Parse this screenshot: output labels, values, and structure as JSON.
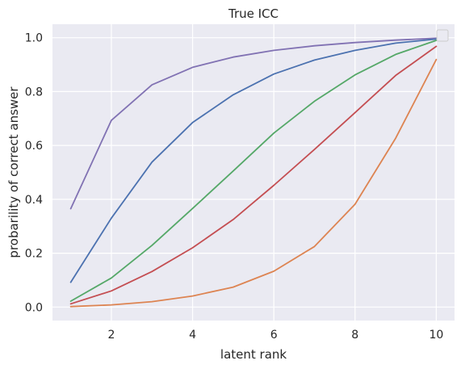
{
  "chart_data": {
    "type": "line",
    "title": "True ICC",
    "xlabel": "latent rank",
    "ylabel": "probarility of correct answer",
    "x": [
      1,
      2,
      3,
      4,
      5,
      6,
      7,
      8,
      9,
      10
    ],
    "xlim": [
      0.55,
      10.45
    ],
    "ylim": [
      -0.05,
      1.05
    ],
    "xticks": [
      2,
      4,
      6,
      8,
      10
    ],
    "yticks": [
      0.0,
      0.2,
      0.4,
      0.6,
      0.8,
      1.0
    ],
    "ytick_labels": [
      "0.0",
      "0.2",
      "0.4",
      "0.6",
      "0.8",
      "1.0"
    ],
    "grid": true,
    "background": "#eaeaf2",
    "legend": {
      "placement": "top-right",
      "entries": []
    },
    "series": [
      {
        "color": "#8172b3",
        "values": [
          0.365,
          0.693,
          0.825,
          0.89,
          0.928,
          0.953,
          0.97,
          0.982,
          0.991,
          0.998
        ]
      },
      {
        "color": "#4c72b0",
        "values": [
          0.092,
          0.33,
          0.538,
          0.685,
          0.788,
          0.865,
          0.917,
          0.953,
          0.98,
          0.995
        ]
      },
      {
        "color": "#55a868",
        "values": [
          0.022,
          0.108,
          0.229,
          0.366,
          0.505,
          0.646,
          0.764,
          0.862,
          0.938,
          0.99
        ]
      },
      {
        "color": "#c44e52",
        "values": [
          0.012,
          0.06,
          0.132,
          0.22,
          0.325,
          0.452,
          0.585,
          0.722,
          0.86,
          0.968
        ]
      },
      {
        "color": "#dd8452",
        "values": [
          0.002,
          0.008,
          0.02,
          0.041,
          0.074,
          0.133,
          0.225,
          0.382,
          0.627,
          0.919
        ]
      }
    ]
  }
}
